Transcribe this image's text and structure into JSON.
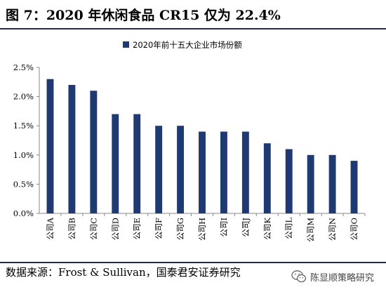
{
  "header": {
    "figure_title": "图 7：2020 年休闲食品 CR15 仅为 22.4%"
  },
  "footer": {
    "source": "数据来源：Frost & Sullivan，国泰君安证券研究"
  },
  "watermark": {
    "text": "陈显顺策略研究",
    "icon": "wechat-icon"
  },
  "colors": {
    "bar": "#1f3a73",
    "axis": "#888888",
    "rule": "#1f2a44"
  },
  "chart_data": {
    "type": "bar",
    "categories": [
      "公司A",
      "公司B",
      "公司C",
      "公司D",
      "公司E",
      "公司F",
      "公司G",
      "公司H",
      "公司I",
      "公司J",
      "公司K",
      "公司L",
      "公司M",
      "公司N",
      "公司O"
    ],
    "series": [
      {
        "name": "2020年前十五大企业市场份额",
        "values": [
          2.3,
          2.2,
          2.1,
          1.7,
          1.7,
          1.5,
          1.5,
          1.4,
          1.4,
          1.4,
          1.2,
          1.1,
          1.0,
          1.0,
          0.9
        ]
      }
    ],
    "yticks": [
      "0.0%",
      "0.5%",
      "1.0%",
      "1.5%",
      "2.0%",
      "2.5%"
    ],
    "ylim": [
      0,
      2.5
    ],
    "unit": "%",
    "legend": "top-center",
    "grid": false
  }
}
